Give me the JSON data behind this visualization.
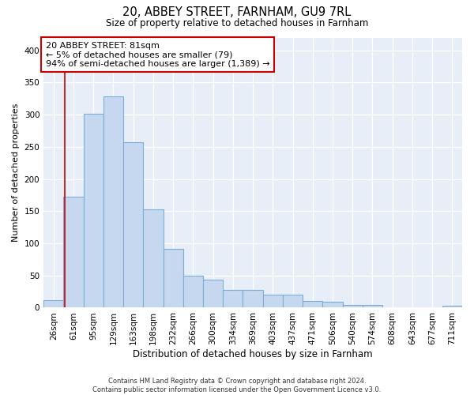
{
  "title": "20, ABBEY STREET, FARNHAM, GU9 7RL",
  "subtitle": "Size of property relative to detached houses in Farnham",
  "xlabel": "Distribution of detached houses by size in Farnham",
  "ylabel": "Number of detached properties",
  "bar_color": "#c5d8f0",
  "bar_edge_color": "#7aaed4",
  "plot_bg_color": "#e8eef8",
  "categories": [
    "26sqm",
    "61sqm",
    "95sqm",
    "129sqm",
    "163sqm",
    "198sqm",
    "232sqm",
    "266sqm",
    "300sqm",
    "334sqm",
    "369sqm",
    "403sqm",
    "437sqm",
    "471sqm",
    "506sqm",
    "540sqm",
    "574sqm",
    "608sqm",
    "643sqm",
    "677sqm",
    "711sqm"
  ],
  "values": [
    12,
    172,
    301,
    328,
    257,
    153,
    91,
    50,
    44,
    27,
    27,
    20,
    20,
    10,
    9,
    4,
    4,
    1,
    1,
    1,
    3
  ],
  "ylim": [
    0,
    420
  ],
  "yticks": [
    0,
    50,
    100,
    150,
    200,
    250,
    300,
    350,
    400
  ],
  "annotation_text": "20 ABBEY STREET: 81sqm\n← 5% of detached houses are smaller (79)\n94% of semi-detached houses are larger (1,389) →",
  "vline_color": "#cc0000",
  "annotation_box_color": "white",
  "annotation_box_edge": "#cc0000",
  "footer_line1": "Contains HM Land Registry data © Crown copyright and database right 2024.",
  "footer_line2": "Contains public sector information licensed under the Open Government Licence v3.0."
}
